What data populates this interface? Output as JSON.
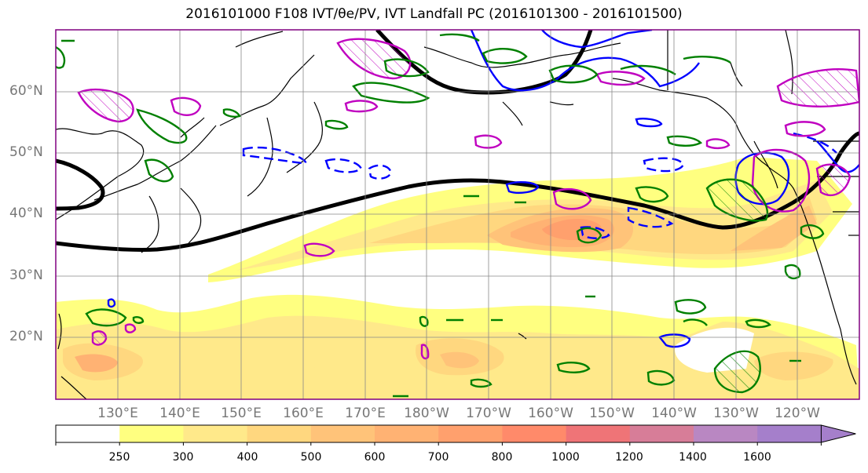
{
  "title": "2016101000 F108 IVT/θe/PV, IVT Landfall PC (2016101300 - 2016101500)",
  "latitude_labels": [
    "60°N",
    "50°N",
    "40°N",
    "30°N",
    "20°N"
  ],
  "longitude_labels": [
    "130°E",
    "140°E",
    "150°E",
    "160°E",
    "170°E",
    "180°W",
    "170°W",
    "160°W",
    "150°W",
    "140°W",
    "130°W",
    "120°W"
  ],
  "colorbar": {
    "ticks": [
      "250",
      "300",
      "400",
      "500",
      "600",
      "700",
      "800",
      "1000",
      "1200",
      "1400",
      "1600"
    ],
    "colors": [
      "#ffffff",
      "#ffff80",
      "#ffe98a",
      "#ffd77f",
      "#ffc379",
      "#ffb273",
      "#ffa06d",
      "#ff8a6a",
      "#ef7477",
      "#d77d98",
      "#b987c2",
      "#a57fcb"
    ]
  },
  "legend_colors": {
    "ivt_mean_contour": "#000000",
    "theta_e": "#0000ff",
    "pv_magenta": "#c000c0",
    "pv_green": "#008000"
  }
}
